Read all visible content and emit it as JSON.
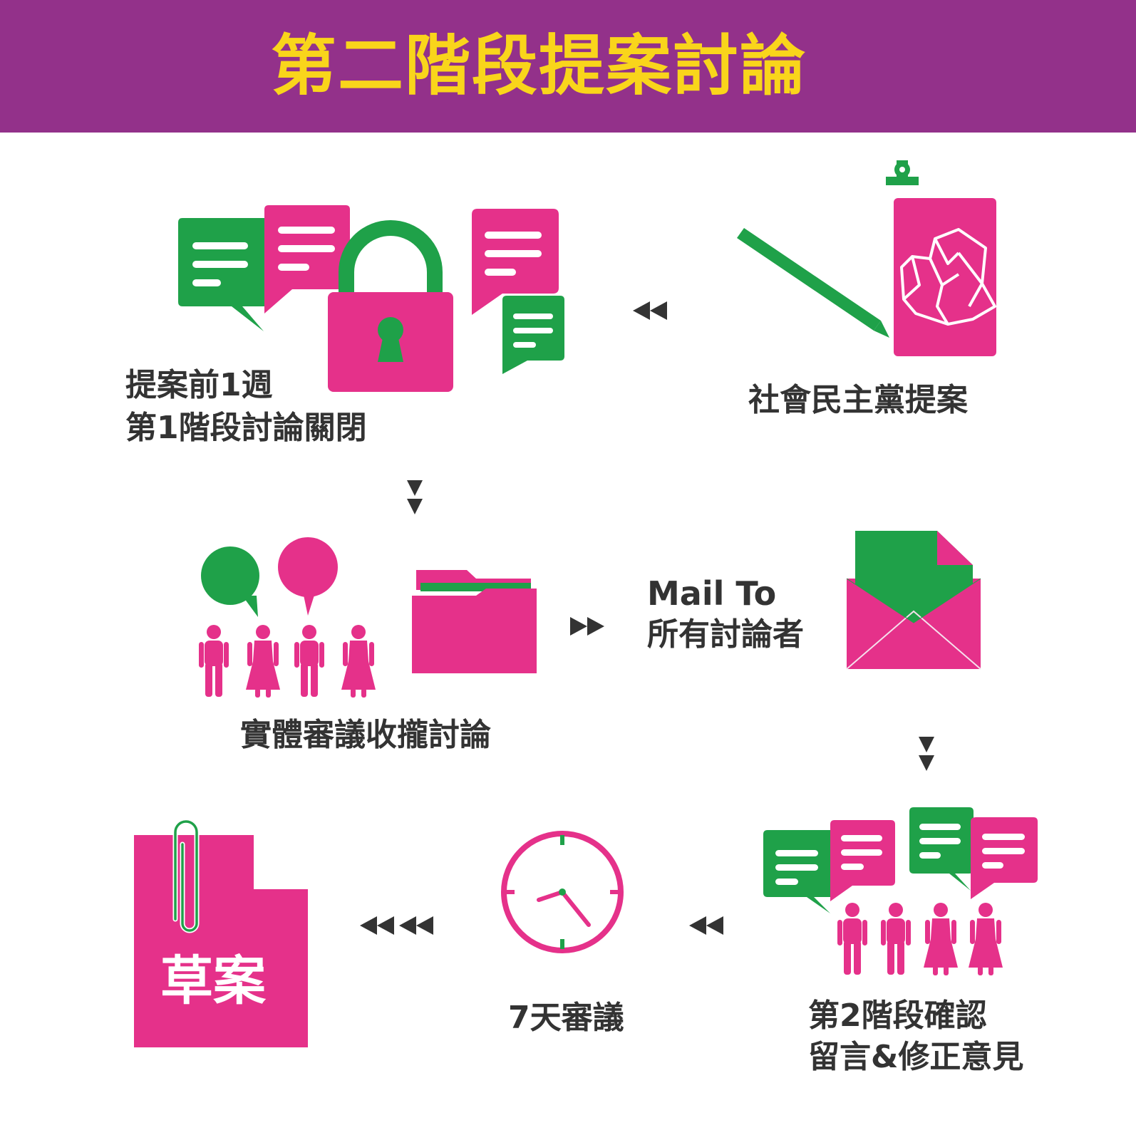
{
  "header": {
    "title": "第二階段提案討論"
  },
  "steps": {
    "proposal": {
      "label": "社會民主黨提案"
    },
    "close_stage1": {
      "line1": "提案前1週",
      "line2": "第1階段討論關閉"
    },
    "offline_review": {
      "label": "實體審議收攏討論"
    },
    "mail": {
      "line1": "Mail To",
      "line2": "所有討論者"
    },
    "stage2_confirm": {
      "line1": "第2階段確認",
      "line2": "留言&修正意見"
    },
    "review_days": {
      "label": "7天審議"
    },
    "draft": {
      "label": "草案"
    }
  },
  "colors": {
    "header_bg": "#93318a",
    "title": "#f9d51b",
    "pink": "#e5318a",
    "green": "#1fa149",
    "text": "#333333"
  }
}
